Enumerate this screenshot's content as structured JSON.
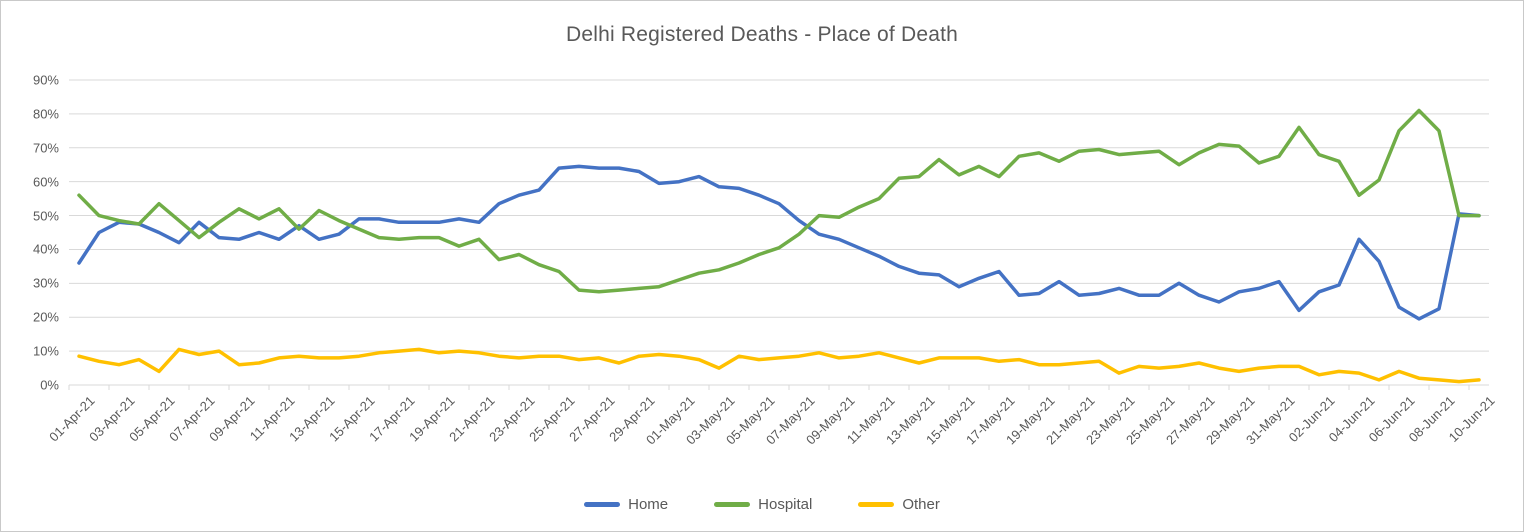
{
  "title": "Delhi Registered Deaths - Place of Death",
  "colors": {
    "home": "#4472C4",
    "hospital": "#70AD47",
    "other": "#FFC000",
    "gridline": "#D9D9D9",
    "axis_text": "#595959",
    "frame_border": "#C9C9C9"
  },
  "chart_data": {
    "type": "line",
    "title": "Delhi Registered Deaths - Place of Death",
    "xlabel": "",
    "ylabel": "",
    "ylim": [
      0,
      90
    ],
    "grid": true,
    "legend_position": "bottom",
    "x_tick_step": 2,
    "y_ticks": [
      "0%",
      "10%",
      "20%",
      "30%",
      "40%",
      "50%",
      "60%",
      "70%",
      "80%",
      "90%"
    ],
    "x": [
      "01-Apr-21",
      "02-Apr-21",
      "03-Apr-21",
      "04-Apr-21",
      "05-Apr-21",
      "06-Apr-21",
      "07-Apr-21",
      "08-Apr-21",
      "09-Apr-21",
      "10-Apr-21",
      "11-Apr-21",
      "12-Apr-21",
      "13-Apr-21",
      "14-Apr-21",
      "15-Apr-21",
      "16-Apr-21",
      "17-Apr-21",
      "18-Apr-21",
      "19-Apr-21",
      "20-Apr-21",
      "21-Apr-21",
      "22-Apr-21",
      "23-Apr-21",
      "24-Apr-21",
      "25-Apr-21",
      "26-Apr-21",
      "27-Apr-21",
      "28-Apr-21",
      "29-Apr-21",
      "30-Apr-21",
      "01-May-21",
      "02-May-21",
      "03-May-21",
      "04-May-21",
      "05-May-21",
      "06-May-21",
      "07-May-21",
      "08-May-21",
      "09-May-21",
      "10-May-21",
      "11-May-21",
      "12-May-21",
      "13-May-21",
      "14-May-21",
      "15-May-21",
      "16-May-21",
      "17-May-21",
      "18-May-21",
      "19-May-21",
      "20-May-21",
      "21-May-21",
      "22-May-21",
      "23-May-21",
      "24-May-21",
      "25-May-21",
      "26-May-21",
      "27-May-21",
      "28-May-21",
      "29-May-21",
      "30-May-21",
      "31-May-21",
      "01-Jun-21",
      "02-Jun-21",
      "03-Jun-21",
      "04-Jun-21",
      "05-Jun-21",
      "06-Jun-21",
      "07-Jun-21",
      "08-Jun-21",
      "09-Jun-21",
      "10-Jun-21"
    ],
    "series": [
      {
        "name": "Home",
        "color": "#4472C4",
        "values": [
          36,
          45,
          48,
          47.5,
          45,
          42,
          48,
          43.5,
          43,
          45,
          43,
          47,
          43,
          44.5,
          49,
          49,
          48,
          48,
          48,
          49,
          48,
          53.5,
          56,
          57.5,
          64,
          64.5,
          64,
          64,
          63,
          59.5,
          60,
          61.5,
          58.5,
          58,
          56,
          53.5,
          48.5,
          44.5,
          43,
          40.5,
          38,
          35,
          33,
          32.5,
          29,
          31.5,
          33.5,
          26.5,
          27,
          30.5,
          26.5,
          27,
          28.5,
          26.5,
          26.5,
          30,
          26.5,
          24.5,
          27.5,
          28.5,
          30.5,
          22,
          27.5,
          29.5,
          43,
          36.5,
          23,
          19.5,
          22.5,
          50.5,
          50
        ]
      },
      {
        "name": "Hospital",
        "color": "#70AD47",
        "values": [
          56,
          50,
          48.5,
          47.5,
          53.5,
          48.5,
          43.5,
          48,
          52,
          49,
          52,
          46,
          51.5,
          48.5,
          46,
          43.5,
          43,
          43.5,
          43.5,
          41,
          43,
          37,
          38.5,
          35.5,
          33.5,
          28,
          27.5,
          28,
          28.5,
          29,
          31,
          33,
          34,
          36,
          38.5,
          40.5,
          44.5,
          50,
          49.5,
          52.5,
          55,
          61,
          61.5,
          66.5,
          62,
          64.5,
          61.5,
          67.5,
          68.5,
          66,
          69,
          69.5,
          68,
          68.5,
          69,
          65,
          68.5,
          71,
          70.5,
          65.5,
          67.5,
          76,
          68,
          66,
          56,
          60.5,
          75,
          81,
          75,
          50,
          50
        ]
      },
      {
        "name": "Other",
        "color": "#FFC000",
        "values": [
          8.5,
          7,
          6,
          7.5,
          4,
          10.5,
          9,
          10,
          6,
          6.5,
          8,
          8.5,
          8,
          8,
          8.5,
          9.5,
          10,
          10.5,
          9.5,
          10,
          9.5,
          8.5,
          8,
          8.5,
          8.5,
          7.5,
          8,
          6.5,
          8.5,
          9,
          8.5,
          7.5,
          5,
          8.5,
          7.5,
          8,
          8.5,
          9.5,
          8,
          8.5,
          9.5,
          8,
          6.5,
          8,
          8,
          8,
          7,
          7.5,
          6,
          6,
          6.5,
          7,
          3.5,
          5.5,
          5,
          5.5,
          6.5,
          5,
          4,
          5,
          5.5,
          5.5,
          3,
          4,
          3.5,
          1.5,
          4,
          2,
          1.5,
          1,
          1.5
        ]
      }
    ]
  }
}
